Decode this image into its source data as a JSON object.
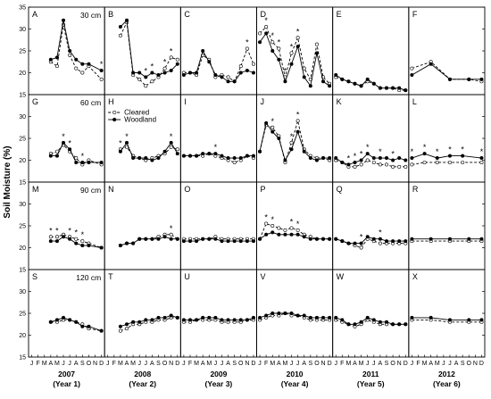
{
  "chart_data": {
    "type": "line",
    "ylabel": "Soil Moisture (%)",
    "ylim": [
      15,
      35
    ],
    "yticks": [
      15,
      20,
      25,
      30,
      35
    ],
    "legend_position": "top-left of panel H",
    "month_labels": [
      "J",
      "F",
      "M",
      "A",
      "M",
      "J",
      "J",
      "A",
      "S",
      "O",
      "N",
      "D"
    ],
    "years": [
      {
        "year": "2007",
        "label": "(Year 1)"
      },
      {
        "year": "2008",
        "label": "(Year 2)"
      },
      {
        "year": "2009",
        "label": "(Year 3)"
      },
      {
        "year": "2010",
        "label": "(Year 4)"
      },
      {
        "year": "2011",
        "label": "(Year 5)"
      },
      {
        "year": "2012",
        "label": "(Year 6)"
      }
    ],
    "series": [
      {
        "name": "Cleared",
        "marker": "open-circle",
        "line": "dashed"
      },
      {
        "name": "Woodland",
        "marker": "filled-circle",
        "line": "solid"
      }
    ],
    "depths": [
      "30 cm",
      "60 cm",
      "90 cm",
      "120 cm"
    ],
    "panels": [
      {
        "letter": "A",
        "row": 0,
        "col": 0,
        "months": [
          4,
          5,
          6,
          7,
          8,
          9,
          10,
          12
        ],
        "cleared": [
          22.5,
          21.5,
          31.0,
          24.0,
          21.0,
          20.0,
          21.5,
          18.5
        ],
        "woodland": [
          23.0,
          23.5,
          32.0,
          25.0,
          23.0,
          22.0,
          22.0,
          20.5
        ],
        "stars": [
          12
        ]
      },
      {
        "letter": "B",
        "row": 0,
        "col": 1,
        "months": [
          3,
          4,
          5,
          6,
          7,
          8,
          9,
          10,
          11,
          12
        ],
        "cleared": [
          28.5,
          31.5,
          19.5,
          18.5,
          17.0,
          18.0,
          19.0,
          21.0,
          23.5,
          23.0
        ],
        "woodland": [
          30.5,
          32.0,
          20.0,
          20.0,
          19.0,
          20.0,
          19.5,
          20.0,
          20.5,
          22.0
        ],
        "stars": [
          7,
          8,
          10,
          11
        ]
      },
      {
        "letter": "C",
        "row": 0,
        "col": 2,
        "months": [
          1,
          2,
          3,
          4,
          5,
          6,
          7,
          8,
          9,
          10,
          11,
          12
        ],
        "cleared": [
          20.0,
          20.0,
          19.5,
          24.0,
          23.0,
          19.0,
          19.5,
          19.0,
          18.0,
          21.5,
          25.5,
          22.0
        ],
        "woodland": [
          19.5,
          20.0,
          20.0,
          25.0,
          22.5,
          19.5,
          19.0,
          18.0,
          18.0,
          20.0,
          20.5,
          20.0
        ],
        "stars": [
          11
        ]
      },
      {
        "letter": "D",
        "row": 0,
        "col": 3,
        "months": [
          1,
          2,
          3,
          4,
          5,
          6,
          7,
          8,
          9,
          10,
          11,
          12
        ],
        "cleared": [
          29.0,
          30.5,
          27.0,
          25.5,
          19.0,
          24.5,
          28.0,
          21.0,
          18.5,
          26.5,
          19.0,
          17.5
        ],
        "woodland": [
          27.0,
          29.0,
          25.0,
          23.0,
          18.0,
          22.0,
          26.0,
          19.0,
          17.0,
          24.5,
          18.0,
          17.0
        ],
        "stars": [
          2,
          3,
          4,
          5,
          6,
          7
        ]
      },
      {
        "letter": "E",
        "row": 0,
        "col": 4,
        "months": [
          1,
          2,
          3,
          4,
          5,
          6,
          7,
          8,
          9,
          10,
          11,
          12
        ],
        "cleared": [
          19.0,
          18.5,
          18.0,
          17.5,
          17.0,
          18.0,
          17.5,
          16.5,
          16.5,
          16.5,
          16.0,
          16.0
        ],
        "woodland": [
          19.5,
          18.5,
          18.0,
          17.5,
          17.0,
          18.5,
          17.5,
          16.5,
          16.5,
          16.5,
          16.5,
          16.0
        ],
        "stars": []
      },
      {
        "letter": "F",
        "row": 0,
        "col": 5,
        "months": [
          1,
          4,
          7,
          10,
          12
        ],
        "cleared": [
          21.0,
          22.5,
          18.5,
          18.5,
          18.0
        ],
        "woodland": [
          19.5,
          22.0,
          18.5,
          18.5,
          18.5
        ],
        "stars": []
      },
      {
        "letter": "G",
        "row": 1,
        "col": 0,
        "months": [
          4,
          5,
          6,
          7,
          8,
          9,
          10,
          12
        ],
        "cleared": [
          21.5,
          22.0,
          23.5,
          22.0,
          20.5,
          19.0,
          20.0,
          19.0
        ],
        "woodland": [
          21.0,
          21.0,
          24.0,
          22.5,
          19.5,
          19.5,
          19.5,
          19.5
        ],
        "stars": [
          6,
          7,
          9
        ]
      },
      {
        "letter": "H",
        "row": 1,
        "col": 1,
        "months": [
          3,
          4,
          5,
          6,
          7,
          8,
          9,
          10,
          11,
          12
        ],
        "cleared": [
          22.5,
          23.0,
          21.0,
          20.5,
          20.0,
          20.5,
          21.0,
          21.5,
          23.0,
          22.5
        ],
        "woodland": [
          22.0,
          24.0,
          20.5,
          20.5,
          20.5,
          20.0,
          20.5,
          22.0,
          24.0,
          21.5
        ],
        "stars": [
          3,
          4,
          11
        ]
      },
      {
        "letter": "I",
        "row": 1,
        "col": 2,
        "months": [
          1,
          2,
          3,
          4,
          5,
          6,
          7,
          8,
          9,
          10,
          11,
          12
        ],
        "cleared": [
          21.0,
          21.0,
          21.0,
          21.0,
          21.5,
          21.0,
          20.5,
          20.0,
          19.5,
          20.0,
          21.0,
          20.5
        ],
        "woodland": [
          21.0,
          21.0,
          21.0,
          21.5,
          21.5,
          21.5,
          21.0,
          20.5,
          20.5,
          20.5,
          21.0,
          21.0
        ],
        "stars": [
          6
        ]
      },
      {
        "letter": "J",
        "row": 1,
        "col": 3,
        "months": [
          1,
          2,
          3,
          4,
          5,
          6,
          7,
          8,
          9,
          10,
          11,
          12
        ],
        "cleared": [
          22.0,
          28.0,
          27.5,
          25.5,
          19.5,
          24.0,
          29.0,
          22.5,
          21.0,
          20.5,
          20.5,
          20.0
        ],
        "woodland": [
          22.0,
          28.5,
          26.5,
          25.0,
          20.0,
          22.5,
          26.5,
          22.0,
          20.5,
          20.0,
          20.5,
          20.5
        ],
        "stars": [
          3,
          6,
          7
        ]
      },
      {
        "letter": "K",
        "row": 1,
        "col": 4,
        "months": [
          1,
          2,
          3,
          4,
          5,
          6,
          7,
          8,
          9,
          10,
          11,
          12
        ],
        "cleared": [
          20.0,
          19.5,
          18.5,
          18.5,
          19.0,
          20.0,
          19.5,
          19.0,
          19.0,
          18.5,
          18.5,
          18.5
        ],
        "woodland": [
          20.5,
          19.5,
          19.0,
          19.5,
          20.0,
          21.5,
          20.5,
          20.5,
          20.5,
          20.0,
          20.5,
          20.0
        ],
        "stars": [
          3,
          4,
          5,
          6,
          8,
          10
        ]
      },
      {
        "letter": "L",
        "row": 1,
        "col": 5,
        "months": [
          1,
          3,
          5,
          7,
          9,
          12
        ],
        "cleared": [
          19.0,
          19.5,
          19.5,
          19.5,
          19.5,
          19.5
        ],
        "woodland": [
          20.5,
          21.5,
          20.5,
          21.0,
          21.0,
          20.5
        ],
        "stars": [
          1,
          3,
          5,
          7,
          9,
          12
        ]
      },
      {
        "letter": "M",
        "row": 2,
        "col": 0,
        "months": [
          4,
          5,
          6,
          7,
          8,
          9,
          10,
          12
        ],
        "cleared": [
          22.5,
          22.5,
          23.0,
          22.5,
          22.0,
          21.5,
          21.0,
          20.0
        ],
        "woodland": [
          21.5,
          21.5,
          22.5,
          22.0,
          21.0,
          20.5,
          20.5,
          20.0
        ],
        "stars": [
          4,
          5,
          7,
          8,
          9
        ]
      },
      {
        "letter": "N",
        "row": 2,
        "col": 1,
        "months": [
          3,
          4,
          5,
          6,
          7,
          8,
          9,
          10,
          11,
          12
        ],
        "cleared": [
          20.5,
          21.0,
          21.0,
          22.0,
          22.0,
          22.0,
          22.5,
          23.0,
          23.0,
          22.0
        ],
        "woodland": [
          20.5,
          21.0,
          21.0,
          22.0,
          22.0,
          22.0,
          22.0,
          22.5,
          22.0,
          22.0
        ],
        "stars": [
          11
        ]
      },
      {
        "letter": "O",
        "row": 2,
        "col": 2,
        "months": [
          1,
          2,
          3,
          4,
          5,
          6,
          7,
          8,
          9,
          10,
          11,
          12
        ],
        "cleared": [
          22.0,
          22.0,
          22.0,
          22.0,
          22.0,
          22.5,
          22.0,
          22.0,
          22.0,
          22.0,
          22.0,
          22.0
        ],
        "woodland": [
          21.5,
          21.5,
          21.5,
          22.0,
          22.0,
          22.0,
          21.5,
          21.5,
          21.5,
          21.5,
          21.5,
          21.5
        ],
        "stars": []
      },
      {
        "letter": "P",
        "row": 2,
        "col": 3,
        "months": [
          1,
          2,
          3,
          4,
          5,
          6,
          7,
          8,
          9,
          10,
          11,
          12
        ],
        "cleared": [
          22.0,
          25.5,
          25.0,
          24.5,
          24.0,
          24.5,
          24.0,
          23.0,
          22.5,
          22.0,
          22.0,
          22.0
        ],
        "woodland": [
          22.0,
          23.0,
          23.5,
          23.0,
          23.0,
          23.0,
          23.0,
          22.5,
          22.0,
          22.0,
          22.0,
          22.0
        ],
        "stars": [
          2,
          3,
          6,
          7
        ]
      },
      {
        "letter": "Q",
        "row": 2,
        "col": 4,
        "months": [
          1,
          2,
          3,
          4,
          5,
          6,
          7,
          8,
          9,
          10,
          11,
          12
        ],
        "cleared": [
          22.0,
          21.5,
          21.0,
          20.5,
          20.0,
          22.0,
          21.5,
          21.0,
          21.0,
          21.0,
          21.0,
          21.0
        ],
        "woodland": [
          22.0,
          21.5,
          21.0,
          21.0,
          21.0,
          22.5,
          22.0,
          22.0,
          21.5,
          21.5,
          21.5,
          21.5
        ],
        "stars": [
          5,
          8
        ]
      },
      {
        "letter": "R",
        "row": 2,
        "col": 5,
        "months": [
          1,
          4,
          7,
          10,
          12
        ],
        "cleared": [
          21.5,
          21.5,
          21.5,
          21.5,
          21.5
        ],
        "woodland": [
          22.0,
          22.0,
          22.0,
          22.0,
          22.0
        ],
        "stars": []
      },
      {
        "letter": "S",
        "row": 3,
        "col": 0,
        "months": [
          4,
          5,
          6,
          7,
          8,
          9,
          10,
          12
        ],
        "cleared": [
          23.0,
          23.0,
          23.5,
          23.5,
          23.0,
          22.5,
          21.5,
          21.0
        ],
        "woodland": [
          23.0,
          23.5,
          24.0,
          23.5,
          23.0,
          22.0,
          22.0,
          21.0
        ],
        "stars": []
      },
      {
        "letter": "T",
        "row": 3,
        "col": 1,
        "months": [
          3,
          4,
          5,
          6,
          7,
          8,
          9,
          10,
          11,
          12
        ],
        "cleared": [
          21.0,
          21.5,
          22.5,
          22.5,
          23.0,
          23.0,
          23.5,
          23.5,
          24.0,
          24.0
        ],
        "woodland": [
          22.0,
          22.5,
          23.0,
          23.0,
          23.5,
          23.5,
          24.0,
          24.0,
          24.5,
          24.0
        ],
        "stars": []
      },
      {
        "letter": "U",
        "row": 3,
        "col": 2,
        "months": [
          1,
          2,
          3,
          4,
          5,
          6,
          7,
          8,
          9,
          10,
          11,
          12
        ],
        "cleared": [
          23.0,
          23.0,
          23.5,
          23.5,
          23.5,
          23.5,
          23.0,
          23.0,
          23.0,
          23.0,
          23.5,
          23.5
        ],
        "woodland": [
          23.5,
          23.5,
          23.5,
          24.0,
          24.0,
          24.0,
          23.5,
          23.5,
          23.5,
          23.5,
          23.5,
          24.0
        ],
        "stars": []
      },
      {
        "letter": "V",
        "row": 3,
        "col": 3,
        "months": [
          1,
          2,
          3,
          4,
          5,
          6,
          7,
          8,
          9,
          10,
          11,
          12
        ],
        "cleared": [
          23.5,
          24.0,
          24.5,
          24.5,
          25.0,
          24.5,
          24.5,
          24.0,
          23.5,
          23.5,
          23.5,
          23.5
        ],
        "woodland": [
          24.0,
          24.5,
          25.0,
          25.0,
          25.0,
          25.0,
          24.5,
          24.5,
          24.0,
          24.0,
          24.0,
          24.0
        ],
        "stars": []
      },
      {
        "letter": "W",
        "row": 3,
        "col": 4,
        "months": [
          1,
          2,
          3,
          4,
          5,
          6,
          7,
          8,
          9,
          10,
          11,
          12
        ],
        "cleared": [
          23.5,
          23.0,
          22.5,
          22.0,
          22.5,
          23.5,
          23.0,
          22.5,
          22.5,
          22.5,
          22.5,
          22.5
        ],
        "woodland": [
          24.0,
          23.5,
          22.5,
          22.5,
          23.0,
          24.0,
          23.5,
          23.0,
          23.0,
          22.5,
          22.5,
          22.5
        ],
        "stars": []
      },
      {
        "letter": "X",
        "row": 3,
        "col": 5,
        "months": [
          1,
          4,
          7,
          10,
          12
        ],
        "cleared": [
          23.5,
          23.5,
          23.0,
          23.0,
          23.0
        ],
        "woodland": [
          24.0,
          24.0,
          23.5,
          23.5,
          23.5
        ],
        "stars": []
      }
    ]
  }
}
